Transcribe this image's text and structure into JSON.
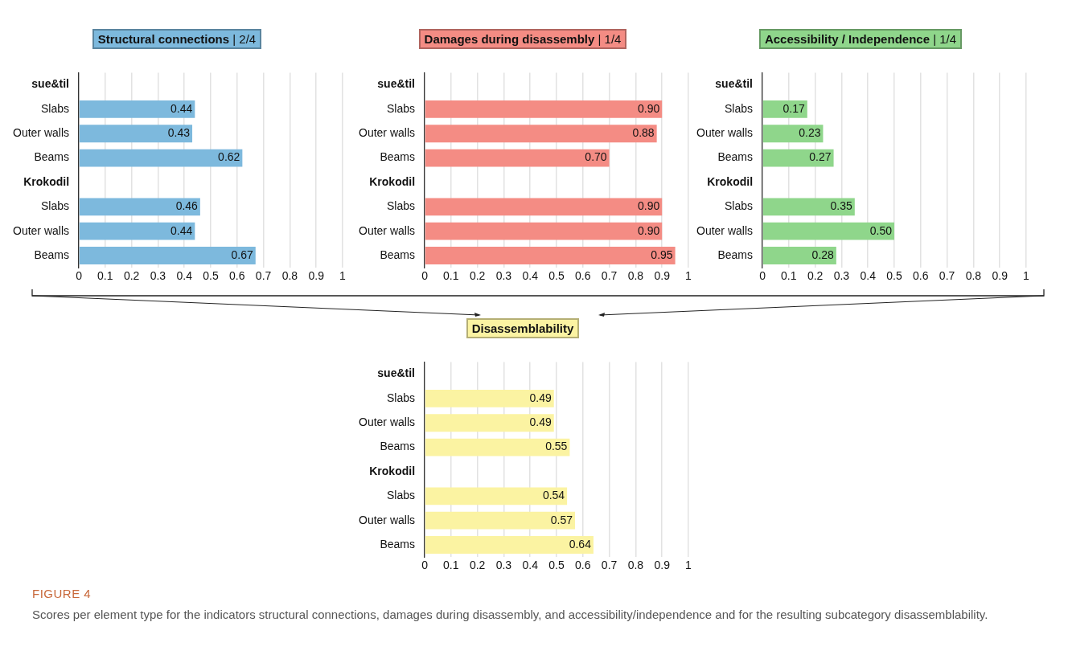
{
  "chart_data": [
    {
      "type": "bar",
      "orientation": "horizontal",
      "title": "Structural connections | 2/4",
      "categories": [
        "sue&til",
        "Slabs",
        "Outer walls",
        "Beams",
        "Krokodil",
        "Slabs",
        "Outer walls",
        "Beams"
      ],
      "values": [
        null,
        0.44,
        0.43,
        0.62,
        null,
        0.46,
        0.44,
        0.67
      ],
      "value_labels": [
        null,
        "0.44",
        "0.43",
        "0.62",
        null,
        "0.46",
        "0.44",
        "0.67"
      ],
      "color": "#7db9dd",
      "xlim": [
        0,
        1
      ],
      "xticks": [
        0,
        0.1,
        0.2,
        0.3,
        0.4,
        0.5,
        0.6,
        0.7,
        0.8,
        0.9,
        1
      ],
      "grid": "x"
    },
    {
      "type": "bar",
      "orientation": "horizontal",
      "title": "Damages during disassembly | 1/4",
      "categories": [
        "sue&til",
        "Slabs",
        "Outer walls",
        "Beams",
        "Krokodil",
        "Slabs",
        "Outer walls",
        "Beams"
      ],
      "values": [
        null,
        0.9,
        0.88,
        0.7,
        null,
        0.9,
        0.9,
        0.95
      ],
      "value_labels": [
        null,
        "0.90",
        "0.88",
        "0.70",
        null,
        "0.90",
        "0.90",
        "0.95"
      ],
      "color": "#f48c84",
      "xlim": [
        0,
        1
      ],
      "xticks": [
        0,
        0.1,
        0.2,
        0.3,
        0.4,
        0.5,
        0.6,
        0.7,
        0.8,
        0.9,
        1
      ],
      "grid": "x"
    },
    {
      "type": "bar",
      "orientation": "horizontal",
      "title": "Accessibility / Independence | 1/4",
      "categories": [
        "sue&til",
        "Slabs",
        "Outer walls",
        "Beams",
        "Krokodil",
        "Slabs",
        "Outer walls",
        "Beams"
      ],
      "values": [
        null,
        0.17,
        0.23,
        0.27,
        null,
        0.35,
        0.5,
        0.28
      ],
      "value_labels": [
        null,
        "0.17",
        "0.23",
        "0.27",
        null,
        "0.35",
        "0.50",
        "0.28"
      ],
      "color": "#8fd68b",
      "xlim": [
        0,
        1
      ],
      "xticks": [
        0,
        0.1,
        0.2,
        0.3,
        0.4,
        0.5,
        0.6,
        0.7,
        0.8,
        0.9,
        1
      ],
      "grid": "x"
    },
    {
      "type": "bar",
      "orientation": "horizontal",
      "title": "Disassemblability",
      "categories": [
        "sue&til",
        "Slabs",
        "Outer walls",
        "Beams",
        "Krokodil",
        "Slabs",
        "Outer walls",
        "Beams"
      ],
      "values": [
        null,
        0.49,
        0.49,
        0.55,
        null,
        0.54,
        0.57,
        0.64
      ],
      "value_labels": [
        null,
        "0.49",
        "0.49",
        "0.55",
        null,
        "0.54",
        "0.57",
        "0.64"
      ],
      "color": "#fbf3a2",
      "xlim": [
        0,
        1
      ],
      "xticks": [
        0,
        0.1,
        0.2,
        0.3,
        0.4,
        0.5,
        0.6,
        0.7,
        0.8,
        0.9,
        1
      ],
      "grid": "x",
      "annotations": [
        "FIGURE 4",
        "Scores per element type for the indicators structural connections, damages during disassembly, and accessibility/independence and for the resulting subcategory disassemblability."
      ]
    }
  ]
}
